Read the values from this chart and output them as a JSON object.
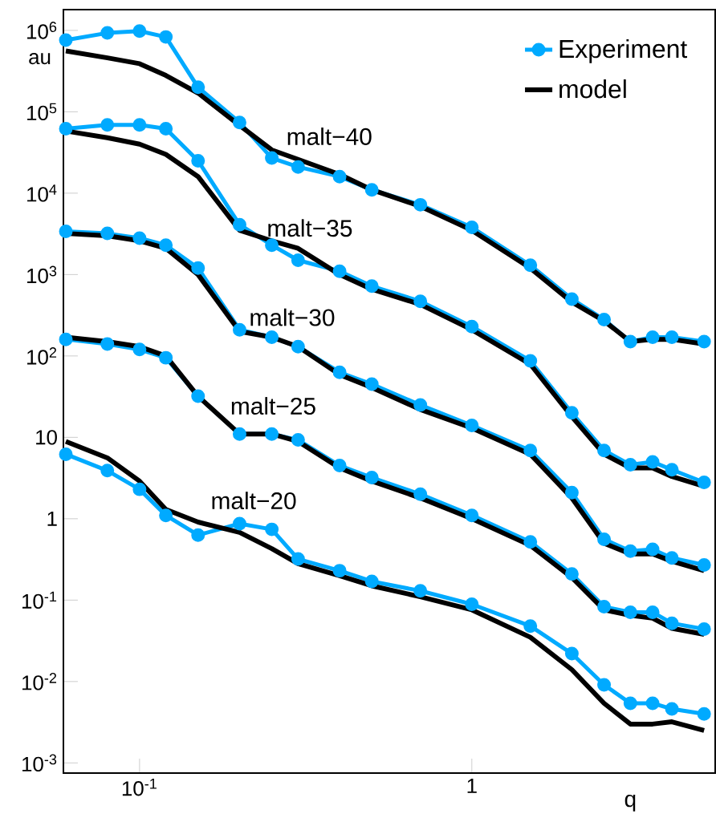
{
  "chart_data": {
    "type": "line",
    "xlabel": "q",
    "ylabel": "au",
    "log": "xy",
    "grid": false,
    "legend": "top right",
    "x": [
      0.06,
      0.08,
      0.1,
      0.12,
      0.15,
      0.2,
      0.25,
      0.3,
      0.4,
      0.5,
      0.7,
      1,
      1.5,
      2,
      2.5,
      3,
      3.5,
      4,
      5
    ],
    "xlim": [
      0.059,
      5.4
    ],
    "ylim": [
      0.00075,
      1800000
    ],
    "xticks": [
      {
        "value": 0.1,
        "label": "10$^{-1}$"
      },
      1
    ],
    "yticks": [
      {
        "value": 0.001,
        "label": "10$^{-3}$"
      },
      {
        "value": 0.01,
        "label": "10$^{-2}$"
      },
      {
        "value": 0.1,
        "label": "10$^{-1}$"
      },
      1,
      10,
      {
        "value": 100,
        "label": "10$^{2}$"
      },
      {
        "value": 1000,
        "label": "10$^{3}$"
      },
      {
        "value": 10000,
        "label": "10$^{4}$"
      },
      {
        "value": 100000,
        "label": "10$^{5}$"
      },
      {
        "value": 1000000,
        "label": "10$^{6}$"
      }
    ],
    "series": [
      {
        "name": "Experiment",
        "color": "#00aaff",
        "marker": "circle",
        "values": [
          760000,
          930000,
          980000,
          830000,
          200000,
          74000,
          27000,
          21000,
          16000,
          11000,
          7200,
          3800,
          1300,
          500,
          280,
          150,
          170,
          170,
          150
        ]
      },
      {
        "name": "model",
        "color": "#000000",
        "marker": "none",
        "values": [
          560000,
          460000,
          390000,
          280000,
          170000,
          68000,
          34000,
          26000,
          17000,
          11000,
          6900,
          3500,
          1200,
          460,
          270,
          150,
          160,
          160,
          140
        ]
      },
      {
        "color": "#00aaff",
        "marker": "circle",
        "values": [
          62000,
          69000,
          69000,
          62000,
          25000,
          4100,
          2300,
          1500,
          1100,
          720,
          470,
          230,
          87,
          20,
          6.9,
          4.6,
          5.0,
          4.0,
          2.8
        ]
      },
      {
        "color": "#000000",
        "marker": "none",
        "values": [
          58000,
          48000,
          40000,
          30000,
          16000,
          3500,
          2600,
          2100,
          1000,
          660,
          430,
          210,
          79,
          18,
          6.2,
          4.2,
          4.2,
          3.3,
          2.5
        ]
      },
      {
        "color": "#00aaff",
        "marker": "circle",
        "values": [
          3400,
          3200,
          2800,
          2300,
          1200,
          210,
          170,
          130,
          63,
          45,
          25,
          14,
          6.9,
          2.1,
          0.56,
          0.4,
          0.42,
          0.33,
          0.27
        ]
      },
      {
        "color": "#000000",
        "marker": "none",
        "values": [
          3200,
          3000,
          2600,
          2100,
          1000,
          200,
          170,
          130,
          59,
          41,
          22,
          13,
          6.2,
          1.8,
          0.5,
          0.37,
          0.37,
          0.3,
          0.23
        ]
      },
      {
        "color": "#00aaff",
        "marker": "circle",
        "values": [
          160,
          140,
          120,
          95,
          32,
          11,
          11,
          9.3,
          4.5,
          3.2,
          2.0,
          1.1,
          0.52,
          0.21,
          0.083,
          0.071,
          0.071,
          0.052,
          0.044
        ]
      },
      {
        "color": "#000000",
        "marker": "none",
        "values": [
          170,
          150,
          130,
          100,
          32,
          11,
          11,
          8.9,
          4.2,
          2.9,
          1.8,
          1.0,
          0.47,
          0.19,
          0.076,
          0.065,
          0.06,
          0.045,
          0.038
        ]
      },
      {
        "color": "#00aaff",
        "marker": "circle",
        "values": [
          6.2,
          3.9,
          2.3,
          1.1,
          0.63,
          0.87,
          0.74,
          0.32,
          0.23,
          0.17,
          0.13,
          0.089,
          0.048,
          0.022,
          0.0091,
          0.0054,
          0.0054,
          0.0046,
          0.004
        ]
      },
      {
        "color": "#000000",
        "marker": "none",
        "values": [
          8.9,
          5.6,
          2.9,
          1.3,
          0.91,
          0.68,
          0.43,
          0.28,
          0.2,
          0.15,
          0.11,
          0.076,
          0.035,
          0.014,
          0.0054,
          0.003,
          0.003,
          0.0032,
          0.0025
        ]
      }
    ],
    "annotations": [
      "malt−40",
      "malt−35",
      "malt−30",
      "malt−25",
      "malt−20"
    ]
  }
}
